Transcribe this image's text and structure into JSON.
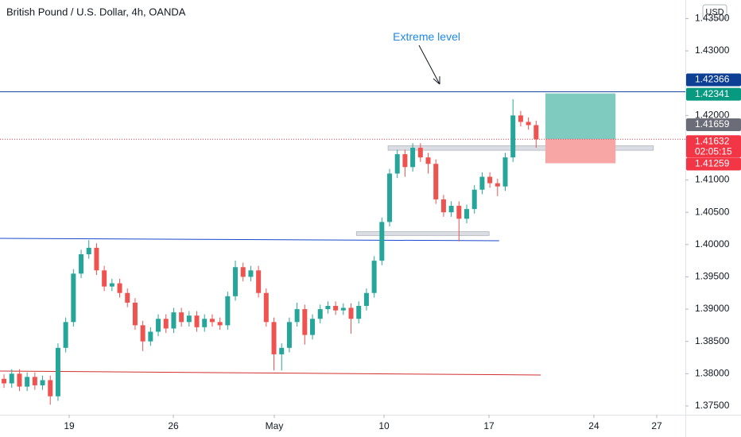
{
  "chart_data": {
    "type": "candlestick",
    "title": "British Pound / U.S. Dollar, 4h, OANDA",
    "currency": "USD",
    "x": [
      0,
      1,
      2,
      3,
      4,
      5,
      6,
      7,
      8,
      9,
      10,
      11,
      12,
      13,
      14,
      15,
      16,
      17,
      18,
      19,
      20,
      21,
      22,
      23,
      24,
      25,
      26,
      27,
      28,
      29,
      30,
      31,
      32,
      33,
      34,
      35,
      36,
      37,
      38,
      39,
      40,
      41,
      42,
      43,
      44,
      45,
      46,
      47,
      48,
      49,
      50,
      51,
      52,
      53,
      54,
      55,
      56,
      57,
      58,
      59,
      60,
      61,
      62,
      63,
      64,
      65,
      66,
      67,
      68,
      69
    ],
    "open": [
      1.3792,
      1.3785,
      1.38,
      1.378,
      1.3795,
      1.3782,
      1.379,
      1.3765,
      1.384,
      1.388,
      1.3955,
      1.3985,
      1.3995,
      1.396,
      1.3935,
      1.394,
      1.3925,
      1.391,
      1.3875,
      1.385,
      1.3865,
      1.3885,
      1.387,
      1.3895,
      1.388,
      1.389,
      1.3872,
      1.3885,
      1.388,
      1.3875,
      1.392,
      1.3965,
      1.395,
      1.396,
      1.3925,
      1.388,
      1.383,
      1.384,
      1.388,
      1.39,
      1.386,
      1.3885,
      1.39,
      1.3905,
      1.3898,
      1.3902,
      1.3885,
      1.3905,
      1.3925,
      1.3975,
      1.4035,
      1.411,
      1.414,
      1.412,
      1.415,
      1.4135,
      1.4125,
      1.407,
      1.405,
      1.406,
      1.404,
      1.4055,
      1.4085,
      1.4105,
      1.4095,
      1.409,
      1.4135,
      1.42,
      1.419,
      1.4185
    ],
    "high": [
      1.3799,
      1.3807,
      1.3807,
      1.3802,
      1.3802,
      1.3797,
      1.3797,
      1.3847,
      1.3887,
      1.3962,
      1.3992,
      1.4007,
      1.4002,
      1.3967,
      1.3947,
      1.3947,
      1.3932,
      1.3917,
      1.3882,
      1.3872,
      1.3892,
      1.3892,
      1.3902,
      1.3902,
      1.3897,
      1.3897,
      1.3892,
      1.3892,
      1.3887,
      1.3927,
      1.3975,
      1.3972,
      1.3967,
      1.3967,
      1.3932,
      1.3887,
      1.3847,
      1.3887,
      1.391,
      1.3907,
      1.3892,
      1.3907,
      1.3912,
      1.3912,
      1.3909,
      1.3909,
      1.3912,
      1.3932,
      1.3982,
      1.4042,
      1.4117,
      1.4147,
      1.4147,
      1.4157,
      1.4157,
      1.4142,
      1.4132,
      1.4077,
      1.4067,
      1.4067,
      1.4062,
      1.4092,
      1.4112,
      1.4112,
      1.4102,
      1.4142,
      1.4225,
      1.4207,
      1.4197,
      1.4192
    ],
    "low": [
      1.3778,
      1.3778,
      1.3773,
      1.3773,
      1.3775,
      1.3775,
      1.3752,
      1.3758,
      1.3833,
      1.3873,
      1.3948,
      1.3978,
      1.3953,
      1.3928,
      1.3928,
      1.3918,
      1.3903,
      1.3868,
      1.3835,
      1.3843,
      1.3858,
      1.3863,
      1.3863,
      1.3873,
      1.3873,
      1.3865,
      1.3865,
      1.3873,
      1.3868,
      1.3868,
      1.3913,
      1.3943,
      1.3943,
      1.3918,
      1.3873,
      1.3805,
      1.3805,
      1.3833,
      1.3873,
      1.3845,
      1.3853,
      1.3878,
      1.3893,
      1.3891,
      1.3891,
      1.3862,
      1.3878,
      1.3898,
      1.3918,
      1.3968,
      1.4028,
      1.4103,
      1.4105,
      1.4113,
      1.4128,
      1.411,
      1.4063,
      1.4043,
      1.4043,
      1.4005,
      1.4033,
      1.4048,
      1.4078,
      1.4088,
      1.4075,
      1.4083,
      1.4128,
      1.4183,
      1.4178,
      1.415
    ],
    "close": [
      1.3785,
      1.38,
      1.378,
      1.3795,
      1.3782,
      1.379,
      1.3765,
      1.384,
      1.388,
      1.3955,
      1.3985,
      1.3995,
      1.396,
      1.3935,
      1.394,
      1.3925,
      1.391,
      1.3875,
      1.385,
      1.3865,
      1.3885,
      1.387,
      1.3895,
      1.388,
      1.389,
      1.3872,
      1.3885,
      1.388,
      1.3875,
      1.392,
      1.3965,
      1.395,
      1.396,
      1.3925,
      1.388,
      1.383,
      1.384,
      1.388,
      1.39,
      1.386,
      1.3885,
      1.39,
      1.3905,
      1.3898,
      1.3902,
      1.3885,
      1.3905,
      1.3925,
      1.3975,
      1.4035,
      1.411,
      1.414,
      1.412,
      1.415,
      1.4135,
      1.4125,
      1.407,
      1.405,
      1.406,
      1.404,
      1.4055,
      1.4085,
      1.4105,
      1.4095,
      1.409,
      1.4135,
      1.42,
      1.419,
      1.4185,
      1.4163
    ],
    "up_color": "#26a69a",
    "down_color": "#ef5350",
    "xlim": [
      -0.52,
      88.35
    ],
    "ylim": [
      1.37364,
      1.43788
    ],
    "grid": false,
    "xticks": [
      {
        "value": 8.45,
        "label": "19"
      },
      {
        "value": 21.96,
        "label": "26"
      },
      {
        "value": 35.05,
        "label": "May"
      },
      {
        "value": 49.28,
        "label": "10"
      },
      {
        "value": 62.89,
        "label": "17"
      },
      {
        "value": 76.49,
        "label": "24"
      },
      {
        "value": 84.64,
        "label": "27"
      }
    ],
    "yticks": [
      {
        "value": 1.435,
        "label": "1.43500"
      },
      {
        "value": 1.43,
        "label": "1.43000"
      },
      {
        "value": 1.42,
        "label": "1.42000"
      },
      {
        "value": 1.41,
        "label": "1.41000"
      },
      {
        "value": 1.405,
        "label": "1.40500"
      },
      {
        "value": 1.4,
        "label": "1.40000"
      },
      {
        "value": 1.395,
        "label": "1.39500"
      },
      {
        "value": 1.39,
        "label": "1.39000"
      },
      {
        "value": 1.385,
        "label": "1.38500"
      },
      {
        "value": 1.38,
        "label": "1.38000"
      },
      {
        "value": 1.375,
        "label": "1.37500"
      }
    ],
    "lines": [
      {
        "x": [
          -0.52,
          88.35
        ],
        "y": [
          1.42366,
          1.42366
        ],
        "color": "#1848a0"
      },
      {
        "x": [
          -0.52,
          64.2
        ],
        "y": [
          1.40096,
          1.40059
        ],
        "color": "#1848cc"
      },
      {
        "x": [
          -0.52,
          69.6
        ],
        "y": [
          1.38041,
          1.3798
        ],
        "color": "#d32f2f"
      }
    ],
    "zones": [
      {
        "x": [
          49.8,
          84.2
        ],
        "y": [
          1.4146,
          1.4153
        ],
        "color": "#d1d4dc"
      },
      {
        "x": [
          45.7,
          62.9
        ],
        "y": [
          1.4014,
          1.402
        ],
        "color": "#d1d4dc"
      }
    ],
    "position": {
      "x": [
        70.2,
        79.3
      ],
      "target": 1.42341,
      "entry": 1.41632,
      "stop": 1.41259,
      "profit_color": "#80cbc0",
      "loss_color": "#f8a5a5"
    },
    "price_tags": [
      {
        "value": 1.42366,
        "color": "#0d3f94"
      },
      {
        "value": 1.42341,
        "color": "#089981"
      },
      {
        "value": 1.41659,
        "color": "#6a6d78"
      },
      {
        "value": 1.41632,
        "color": "#f23645"
      },
      {
        "value": 1.41259,
        "color": "#f23645"
      }
    ],
    "countdown": "02:05:15",
    "annotation": {
      "text": "Extreme level",
      "x": 54.8,
      "y": 1.43209,
      "color": "#1e88e5"
    }
  }
}
